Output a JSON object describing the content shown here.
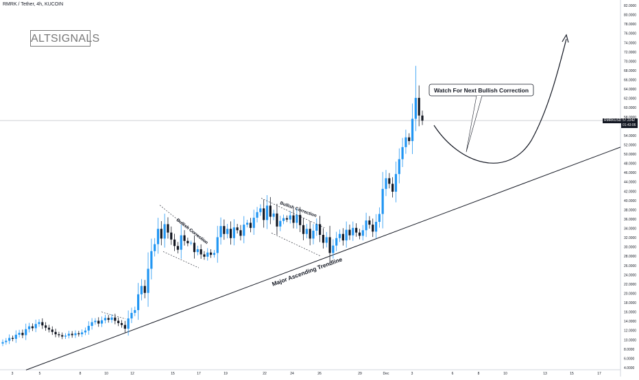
{
  "header": {
    "symbol_title": "RMRK / Tether, 4h, KUCOIN"
  },
  "watermark": {
    "text": "ALTSIGNALS"
  },
  "price_tag": {
    "symbol": "RMRKUSDT",
    "price": "57.2242",
    "timer": "01:43:06"
  },
  "annotations": {
    "callout": "Watch For Next Bullish Correction",
    "trendline": "Major Ascending Trendline",
    "correction_1": "Bullish Correction",
    "correction_2": "Bullish Correction"
  },
  "colors": {
    "up": "#2196f3",
    "down": "#131722",
    "grid": "#ffffff",
    "axis_text": "#131722"
  },
  "chart_data": {
    "type": "candlestick",
    "title": "RMRK / Tether, 4h, KUCOIN",
    "ylim": [
      4,
      83
    ],
    "y_ticks": [
      "4.0000",
      "6.0000",
      "8.0000",
      "10.0000",
      "12.0000",
      "14.0000",
      "16.0000",
      "18.0000",
      "20.0000",
      "22.0000",
      "24.0000",
      "26.0000",
      "28.0000",
      "30.0000",
      "32.0000",
      "34.0000",
      "36.0000",
      "38.0000",
      "40.0000",
      "42.0000",
      "44.0000",
      "46.0000",
      "48.0000",
      "50.0000",
      "52.0000",
      "54.0000",
      "56.0000",
      "58.0000",
      "60.0000",
      "62.0000",
      "64.0000",
      "66.0000",
      "68.0000",
      "70.0000",
      "72.0000",
      "74.0000",
      "76.0000",
      "78.0000",
      "80.0000",
      "82.0000"
    ],
    "x_ticks": [
      "3",
      "5",
      "8",
      "10",
      "12",
      "15",
      "17",
      "19",
      "22",
      "24",
      "26",
      "29",
      "Dec",
      "3",
      "6",
      "8",
      "10",
      "13",
      "15",
      "17"
    ],
    "last_price": 57.2242,
    "closes": [
      9.5,
      9.8,
      10.4,
      10.2,
      11.1,
      11.5,
      11.0,
      12.3,
      12.9,
      12.5,
      13.4,
      13.8,
      13.1,
      12.6,
      12.2,
      11.7,
      11.2,
      11.0,
      10.7,
      10.9,
      11.3,
      11.0,
      11.4,
      11.2,
      11.6,
      12.0,
      13.0,
      13.8,
      14.1,
      13.5,
      14.2,
      14.7,
      14.3,
      14.8,
      14.1,
      13.6,
      13.2,
      12.4,
      14.6,
      15.8,
      16.4,
      19.8,
      21.6,
      20.1,
      25.3,
      29.1,
      30.6,
      33.9,
      31.8,
      34.9,
      33.1,
      31.6,
      30.2,
      29.4,
      32.5,
      31.3,
      30.8,
      30.9,
      28.9,
      29.5,
      28.4,
      27.9,
      28.8,
      28.3,
      28.7,
      32.1,
      34.5,
      32.8,
      33.9,
      31.9,
      34.2,
      33.6,
      32.4,
      34.8,
      35.2,
      34.1,
      36.3,
      37.5,
      38.3,
      35.8,
      38.9,
      36.5,
      37.2,
      34.4,
      35.6,
      36.2,
      35.9,
      36.8,
      35.2,
      36.9,
      34.7,
      32.8,
      33.9,
      31.8,
      33.5,
      34.9,
      32.6,
      30.9,
      32.1,
      28.7,
      30.3,
      31.9,
      32.8,
      31.4,
      33.7,
      32.5,
      34.1,
      33.1,
      32.4,
      33.6,
      35.7,
      34.8,
      33.3,
      35.4,
      37.1,
      42.5,
      44.8,
      43.6,
      41.9,
      45.7,
      48.9,
      51.5,
      53.6,
      52.8,
      57.6,
      62.1,
      58.3,
      57.2
    ],
    "trendline": {
      "from_x": "2",
      "from_y": 3.5,
      "to_x": "18",
      "to_y": 51.5
    },
    "projection": "curve down to ~47.5 then up to ~76"
  }
}
